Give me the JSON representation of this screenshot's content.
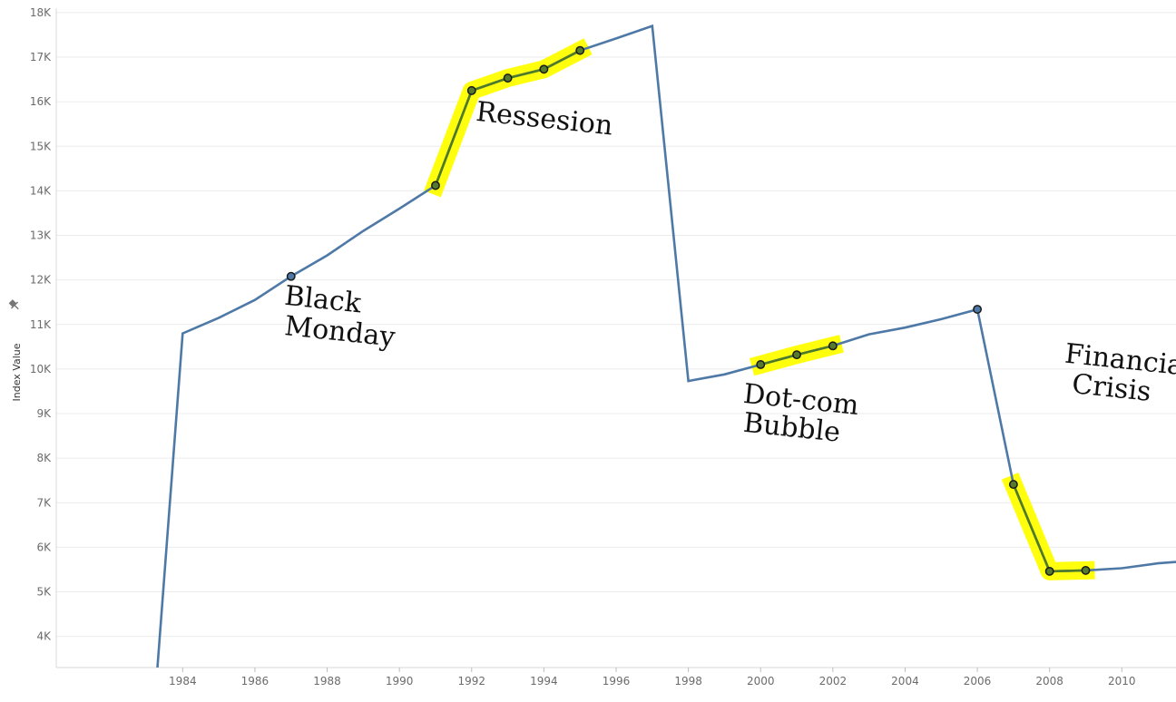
{
  "chart_data": {
    "type": "line",
    "ylabel": "Index Value",
    "ylabel_icon": "pin-icon",
    "xlim": [
      1980.5,
      2011.5
    ],
    "ylim": [
      3300,
      18100
    ],
    "x_ticks": [
      1984,
      1986,
      1988,
      1990,
      1992,
      1994,
      1996,
      1998,
      2000,
      2002,
      2004,
      2006,
      2008,
      2010
    ],
    "x_tick_labels": [
      "1984",
      "1986",
      "1988",
      "1990",
      "1992",
      "1994",
      "1996",
      "1998",
      "2000",
      "2002",
      "2004",
      "2006",
      "2008",
      "2010"
    ],
    "y_ticks": [
      4000,
      5000,
      6000,
      7000,
      8000,
      9000,
      10000,
      11000,
      12000,
      13000,
      14000,
      15000,
      16000,
      17000,
      18000
    ],
    "y_tick_labels": [
      "4K",
      "5K",
      "6K",
      "7K",
      "8K",
      "9K",
      "10K",
      "11K",
      "12K",
      "13K",
      "14K",
      "15K",
      "16K",
      "17K",
      "18K"
    ],
    "grid": true,
    "series": [
      {
        "color": "#4e79a7",
        "points": [
          [
            1983.3,
            3300
          ],
          [
            1984,
            10800
          ],
          [
            1985,
            11150
          ],
          [
            1986,
            11550
          ],
          [
            1987,
            12080
          ],
          [
            1988,
            12550
          ],
          [
            1989,
            13100
          ],
          [
            1990,
            13600
          ],
          [
            1991,
            14120
          ],
          [
            1992,
            16250
          ],
          [
            1993,
            16530
          ],
          [
            1994,
            16730
          ],
          [
            1995,
            17150
          ],
          [
            1996,
            17420
          ],
          [
            1997,
            17700
          ],
          [
            1998,
            9730
          ],
          [
            1999,
            9880
          ],
          [
            2000,
            10100
          ],
          [
            2001,
            10320
          ],
          [
            2002,
            10520
          ],
          [
            2003,
            10780
          ],
          [
            2004,
            10930
          ],
          [
            2005,
            11120
          ],
          [
            2006,
            11340
          ],
          [
            2007,
            7410
          ],
          [
            2008,
            5460
          ],
          [
            2009,
            5480
          ],
          [
            2010,
            5530
          ],
          [
            2011,
            5640
          ],
          [
            2011.5,
            5670
          ]
        ]
      }
    ],
    "marker_points": [
      [
        1987,
        12080
      ],
      [
        1991,
        14120
      ],
      [
        1992,
        16250
      ],
      [
        1993,
        16530
      ],
      [
        1994,
        16730
      ],
      [
        1995,
        17150
      ],
      [
        2000,
        10100
      ],
      [
        2001,
        10320
      ],
      [
        2002,
        10520
      ],
      [
        2006,
        11340
      ],
      [
        2007,
        7410
      ],
      [
        2008,
        5460
      ],
      [
        2009,
        5480
      ]
    ],
    "highlight_segments": [
      [
        [
          1991,
          14120
        ],
        [
          1992,
          16250
        ],
        [
          1993,
          16530
        ],
        [
          1994,
          16730
        ],
        [
          1995,
          17150
        ]
      ],
      [
        [
          2000,
          10100
        ],
        [
          2001,
          10320
        ],
        [
          2002,
          10520
        ]
      ],
      [
        [
          2007,
          7410
        ],
        [
          2008,
          5460
        ],
        [
          2009,
          5480
        ]
      ]
    ],
    "highlight_color": "#ffff00",
    "highlight_line_color": "#4f7a28",
    "annotations": [
      {
        "text": "Black",
        "x": 1986.8,
        "y": 11450
      },
      {
        "text": "Monday",
        "x": 1986.8,
        "y": 10770
      },
      {
        "text": "Ressesion",
        "x": 1992.1,
        "y": 15580
      },
      {
        "text": "Dot-com",
        "x": 1999.5,
        "y": 9250
      },
      {
        "text": "Bubble",
        "x": 1999.5,
        "y": 8600
      },
      {
        "text": "Financial",
        "x": 2008.4,
        "y": 10150
      },
      {
        "text": "Crisis",
        "x": 2008.6,
        "y": 9470
      }
    ]
  }
}
